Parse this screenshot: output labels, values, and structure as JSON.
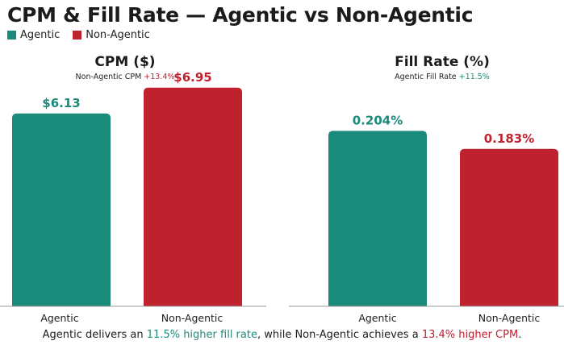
{
  "title": "CPM & Fill Rate — Agentic vs Non-Agentic",
  "legend": [
    {
      "label": "Agentic",
      "color": "#1a8a7b"
    },
    {
      "label": "Non-Agentic",
      "color": "#c0212f"
    }
  ],
  "colors": {
    "agentic": "#1a8a7b",
    "non_agentic": "#c0212f",
    "axis": "#999999",
    "uplift_green": "#1e8b7a",
    "uplift_red": "#bb2030"
  },
  "footer": {
    "pre": "Agentic delivers an ",
    "hl1": "11.5% higher fill rate",
    "mid": ", while Non-Agentic achieves a ",
    "hl2": "13.4% higher CPM",
    "post": "."
  },
  "chart_data": [
    {
      "type": "bar",
      "title": "CPM ($)",
      "subtitle_text": "Non-Agentic CPM ",
      "subtitle_highlight": "+13.4%",
      "subtitle_highlight_color": "#bb2030",
      "categories": [
        "Agentic",
        "Non-Agentic"
      ],
      "values": [
        6.13,
        6.95
      ],
      "value_labels": [
        "$6.13",
        "$6.95"
      ],
      "ylim": [
        0,
        8.2
      ],
      "grid": false
    },
    {
      "type": "bar",
      "title": "Fill Rate (%)",
      "subtitle_text": "Agentic Fill Rate ",
      "subtitle_highlight": "+11.5%",
      "subtitle_highlight_color": "#1e8b7a",
      "categories": [
        "Agentic",
        "Non-Agentic"
      ],
      "values": [
        0.204,
        0.183
      ],
      "value_labels": [
        "0.204%",
        "0.183%"
      ],
      "ylim": [
        0,
        0.3
      ],
      "grid": false
    }
  ]
}
